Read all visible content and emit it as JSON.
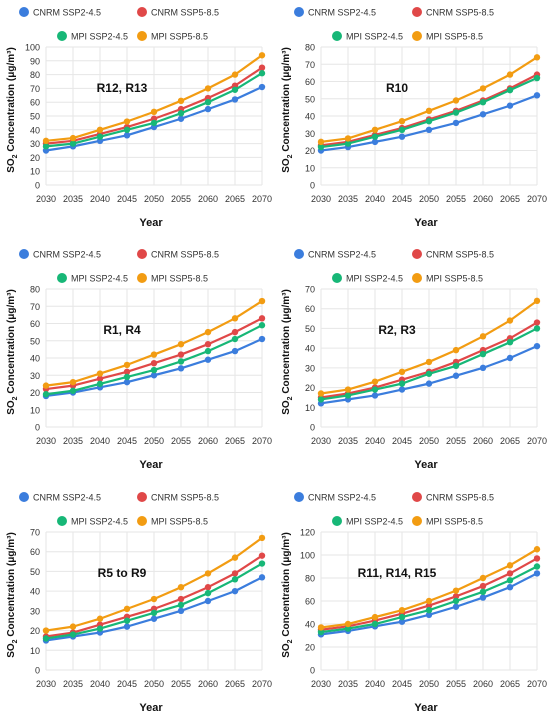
{
  "colors": {
    "cnrm_ssp245": "#3b7ddd",
    "cnrm_ssp585": "#e04848",
    "mpi_ssp245": "#17b777",
    "mpi_ssp585": "#f29c12",
    "grid": "#e6e6e6",
    "axis_text": "#333333"
  },
  "legend": [
    "CNRM SSP2-4.5",
    "CNRM SSP5-8.5",
    "MPI SSP2-4.5",
    "MPI SSP5-8.5"
  ],
  "chart_data": [
    {
      "type": "line",
      "title": "R12, R13",
      "xlabel": "Year",
      "ylabel_prefix": "SO",
      "ylabel_sub": "2",
      "ylabel_suffix": " Concentration (μg/m³)",
      "x": [
        2030,
        2035,
        2040,
        2045,
        2050,
        2055,
        2060,
        2065,
        2070
      ],
      "ylim": [
        0,
        100
      ],
      "yticks": [
        0,
        10,
        20,
        30,
        40,
        50,
        60,
        70,
        80,
        90,
        100
      ],
      "grid": true,
      "legend_position": "top",
      "series": [
        {
          "name": "CNRM SSP2-4.5",
          "values": [
            25,
            28,
            32,
            36,
            42,
            48,
            55,
            62,
            71
          ]
        },
        {
          "name": "CNRM SSP5-8.5",
          "values": [
            30,
            32,
            37,
            42,
            48,
            55,
            63,
            72,
            85
          ]
        },
        {
          "name": "MPI SSP2-4.5",
          "values": [
            28,
            30,
            35,
            40,
            45,
            52,
            60,
            69,
            81
          ]
        },
        {
          "name": "MPI SSP5-8.5",
          "values": [
            32,
            34,
            40,
            46,
            53,
            61,
            70,
            80,
            94
          ]
        }
      ]
    },
    {
      "type": "line",
      "title": "R10",
      "xlabel": "Year",
      "ylabel_prefix": "SO",
      "ylabel_sub": "2",
      "ylabel_suffix": " Concentration (μg/m³)",
      "x": [
        2030,
        2035,
        2040,
        2045,
        2050,
        2055,
        2060,
        2065,
        2070
      ],
      "ylim": [
        0,
        80
      ],
      "yticks": [
        0,
        10,
        20,
        30,
        40,
        50,
        60,
        70,
        80
      ],
      "grid": true,
      "legend_position": "top",
      "series": [
        {
          "name": "CNRM SSP2-4.5",
          "values": [
            20,
            22,
            25,
            28,
            32,
            36,
            41,
            46,
            52
          ]
        },
        {
          "name": "CNRM SSP5-8.5",
          "values": [
            23,
            25,
            29,
            33,
            38,
            43,
            49,
            56,
            64
          ]
        },
        {
          "name": "MPI SSP2-4.5",
          "values": [
            22,
            24,
            28,
            32,
            37,
            42,
            48,
            55,
            62
          ]
        },
        {
          "name": "MPI SSP5-8.5",
          "values": [
            25,
            27,
            32,
            37,
            43,
            49,
            56,
            64,
            74
          ]
        }
      ]
    },
    {
      "type": "line",
      "title": "R1, R4",
      "xlabel": "Year",
      "ylabel_prefix": "SO",
      "ylabel_sub": "2",
      "ylabel_suffix": " Concentration (μg/m³)",
      "x": [
        2030,
        2035,
        2040,
        2045,
        2050,
        2055,
        2060,
        2065,
        2070
      ],
      "ylim": [
        0,
        80
      ],
      "yticks": [
        0,
        10,
        20,
        30,
        40,
        50,
        60,
        70,
        80
      ],
      "grid": true,
      "legend_position": "top",
      "series": [
        {
          "name": "CNRM SSP2-4.5",
          "values": [
            18,
            20,
            23,
            26,
            30,
            34,
            39,
            44,
            51
          ]
        },
        {
          "name": "CNRM SSP5-8.5",
          "values": [
            22,
            24,
            28,
            32,
            37,
            42,
            48,
            55,
            63
          ]
        },
        {
          "name": "MPI SSP2-4.5",
          "values": [
            19,
            21,
            25,
            29,
            33,
            38,
            44,
            51,
            59
          ]
        },
        {
          "name": "MPI SSP5-8.5",
          "values": [
            24,
            26,
            31,
            36,
            42,
            48,
            55,
            63,
            73
          ]
        }
      ]
    },
    {
      "type": "line",
      "title": "R2, R3",
      "xlabel": "Year",
      "ylabel_prefix": "SO",
      "ylabel_sub": "2",
      "ylabel_suffix": " Concentration (μg/m³)",
      "x": [
        2030,
        2035,
        2040,
        2045,
        2050,
        2055,
        2060,
        2065,
        2070
      ],
      "ylim": [
        0,
        70
      ],
      "yticks": [
        0,
        10,
        20,
        30,
        40,
        50,
        60,
        70
      ],
      "grid": true,
      "legend_position": "top",
      "series": [
        {
          "name": "CNRM SSP2-4.5",
          "values": [
            12,
            14,
            16,
            19,
            22,
            26,
            30,
            35,
            41
          ]
        },
        {
          "name": "CNRM SSP5-8.5",
          "values": [
            15,
            17,
            20,
            24,
            28,
            33,
            39,
            45,
            53
          ]
        },
        {
          "name": "MPI SSP2-4.5",
          "values": [
            14,
            16,
            19,
            22,
            27,
            31,
            37,
            43,
            50
          ]
        },
        {
          "name": "MPI SSP5-8.5",
          "values": [
            17,
            19,
            23,
            28,
            33,
            39,
            46,
            54,
            64
          ]
        }
      ]
    },
    {
      "type": "line",
      "title": "R5 to R9",
      "xlabel": "Year",
      "ylabel_prefix": "SO",
      "ylabel_sub": "2",
      "ylabel_suffix": " Concentration (μg/m³)",
      "x": [
        2030,
        2035,
        2040,
        2045,
        2050,
        2055,
        2060,
        2065,
        2070
      ],
      "ylim": [
        0,
        70
      ],
      "yticks": [
        0,
        10,
        20,
        30,
        40,
        50,
        60,
        70
      ],
      "grid": true,
      "legend_position": "top",
      "series": [
        {
          "name": "CNRM SSP2-4.5",
          "values": [
            15,
            17,
            19,
            22,
            26,
            30,
            35,
            40,
            47
          ]
        },
        {
          "name": "CNRM SSP5-8.5",
          "values": [
            17,
            19,
            23,
            27,
            31,
            36,
            42,
            49,
            58
          ]
        },
        {
          "name": "MPI SSP2-4.5",
          "values": [
            16,
            18,
            21,
            25,
            29,
            33,
            39,
            46,
            54
          ]
        },
        {
          "name": "MPI SSP5-8.5",
          "values": [
            20,
            22,
            26,
            31,
            36,
            42,
            49,
            57,
            67
          ]
        }
      ]
    },
    {
      "type": "line",
      "title": "R11, R14, R15",
      "xlabel": "Year",
      "ylabel_prefix": "SO",
      "ylabel_sub": "2",
      "ylabel_suffix": " Concentration (μg/m³)",
      "x": [
        2030,
        2035,
        2040,
        2045,
        2050,
        2055,
        2060,
        2065,
        2070
      ],
      "ylim": [
        0,
        120
      ],
      "yticks": [
        0,
        20,
        40,
        60,
        80,
        100,
        120
      ],
      "grid": true,
      "legend_position": "top",
      "series": [
        {
          "name": "CNRM SSP2-4.5",
          "values": [
            31,
            34,
            38,
            42,
            48,
            55,
            63,
            72,
            84
          ]
        },
        {
          "name": "CNRM SSP5-8.5",
          "values": [
            35,
            38,
            43,
            49,
            56,
            64,
            73,
            84,
            97
          ]
        },
        {
          "name": "MPI SSP2-4.5",
          "values": [
            33,
            36,
            40,
            46,
            52,
            60,
            68,
            78,
            90
          ]
        },
        {
          "name": "MPI SSP5-8.5",
          "values": [
            37,
            40,
            46,
            52,
            60,
            69,
            80,
            91,
            105
          ]
        }
      ]
    }
  ]
}
